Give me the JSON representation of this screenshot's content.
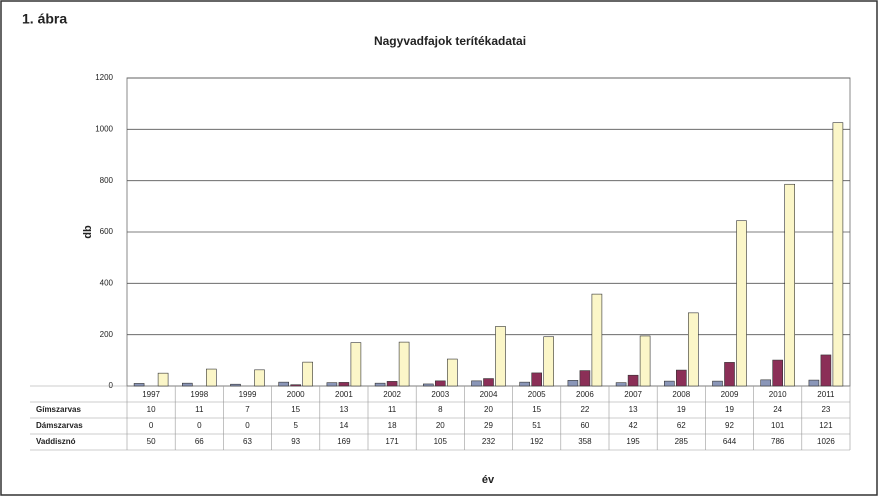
{
  "chart_data": {
    "type": "bar",
    "title": "Nagyvadfajok terítékadatai",
    "corner_label": "1. ábra",
    "y_label": "db",
    "x_label": "év",
    "categories": [
      "1997",
      "1998",
      "1999",
      "2000",
      "2001",
      "2002",
      "2003",
      "2004",
      "2005",
      "2006",
      "2007",
      "2008",
      "2009",
      "2010",
      "2011"
    ],
    "series": [
      {
        "name": "Gímszarvas",
        "color": "#8a96b8",
        "values": [
          10,
          11,
          7,
          15,
          13,
          11,
          8,
          20,
          15,
          22,
          13,
          19,
          19,
          24,
          23
        ]
      },
      {
        "name": "Dámszarvas",
        "color": "#8b2f57",
        "values": [
          0,
          0,
          0,
          5,
          14,
          18,
          20,
          29,
          51,
          60,
          42,
          62,
          92,
          101,
          121
        ]
      },
      {
        "name": "Vaddisznó",
        "color": "#fbf6c8",
        "values": [
          50,
          66,
          63,
          93,
          169,
          171,
          105,
          232,
          192,
          358,
          195,
          285,
          644,
          786,
          1026
        ]
      }
    ],
    "ylim": [
      0,
      1200
    ],
    "yticks": [
      0,
      200,
      400,
      600,
      800,
      1000,
      1200
    ],
    "grid": true
  }
}
